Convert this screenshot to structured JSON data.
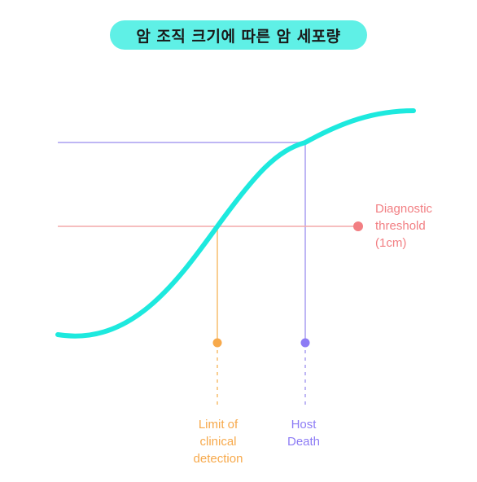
{
  "title": "암 조직 크기에 따른 암 세포량",
  "labels": {
    "diagnostic": [
      "Diagnostic",
      "threshold",
      "(1cm)"
    ],
    "clinical": [
      "Limit of",
      "clinical",
      "detection"
    ],
    "host": [
      "Host",
      "Death"
    ]
  },
  "colors": {
    "curve": "#1de9de",
    "title_pill": "#5ff0e6",
    "host_line": "#a99ef0",
    "host_marker": "#8d7cf5",
    "diagnostic_line": "#f3a8aa",
    "diagnostic_marker": "#f27f83",
    "clinical_line": "#f7bd6e",
    "clinical_marker": "#f7a94b"
  }
}
